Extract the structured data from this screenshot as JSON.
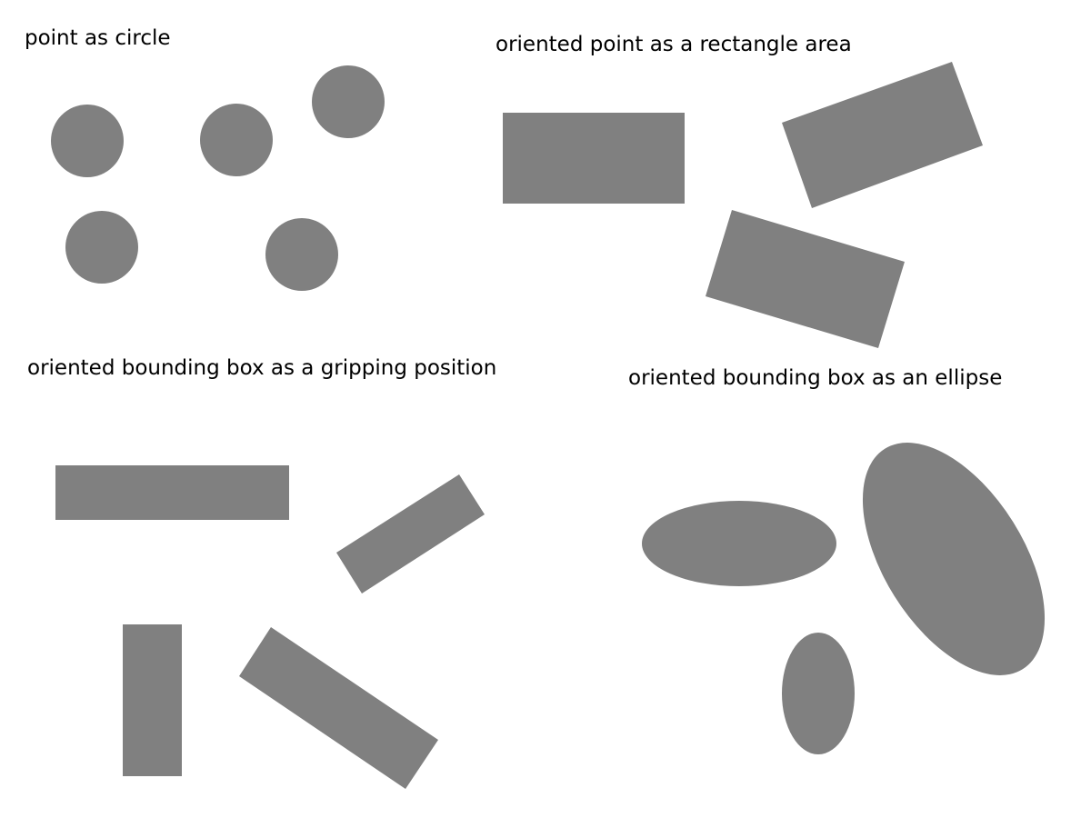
{
  "shape_color": "#808080",
  "background_color": "#ffffff",
  "panels": {
    "circle": {
      "label": "point as circle",
      "shape": "circle",
      "count": 5
    },
    "rectangle_area": {
      "label": "oriented point as a rectangle area",
      "shape": "rectangle",
      "count": 3
    },
    "gripping_position": {
      "label": "oriented bounding box as a gripping position",
      "shape": "rectangle",
      "count": 4
    },
    "ellipse": {
      "label": "oriented bounding box as an ellipse",
      "shape": "ellipse",
      "count": 3
    }
  }
}
